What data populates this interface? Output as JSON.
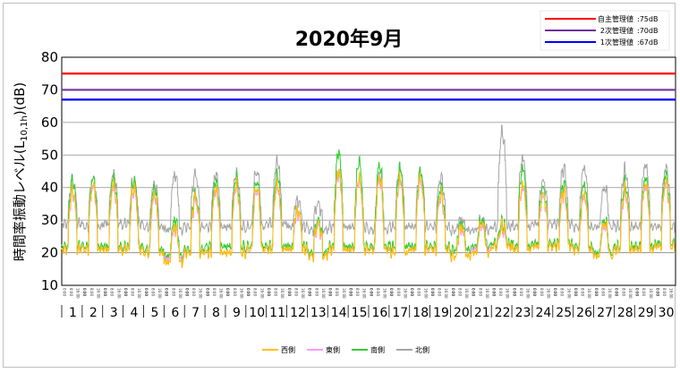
{
  "chart_data": {
    "type": "line",
    "title": "2020年9月",
    "ylabel_prefix": "時間率振動レベル(L",
    "ylabel_sub": "10,1h",
    "ylabel_suffix": ")(dB)",
    "ylim": [
      10,
      80
    ],
    "yticks": [
      10,
      20,
      30,
      40,
      50,
      60,
      70,
      80
    ],
    "x_days": [
      "1",
      "2",
      "3",
      "4",
      "5",
      "6",
      "7",
      "8",
      "9",
      "10",
      "11",
      "12",
      "13",
      "14",
      "15",
      "16",
      "17",
      "18",
      "19",
      "20",
      "21",
      "22",
      "23",
      "24",
      "25",
      "26",
      "27",
      "28",
      "29",
      "30"
    ],
    "hour_ticks": [
      "0:00",
      "8:00",
      "16:00",
      "0:00"
    ],
    "thresholds": [
      {
        "name": "自主管理値",
        "value_label": ":75dB",
        "value": 75,
        "color": "#ff0000"
      },
      {
        "name": "2次管理値",
        "value_label": ":70dB",
        "value": 70,
        "color": "#7030a0"
      },
      {
        "name": "1次管理値",
        "value_label": ":67dB",
        "value": 67,
        "color": "#0000ff"
      }
    ],
    "series": [
      {
        "name": "西側",
        "color": "#ffc000"
      },
      {
        "name": "東側",
        "color": "#ff99ff"
      },
      {
        "name": "南側",
        "color": "#33cc33"
      },
      {
        "name": "北側",
        "color": "#a6a6a6"
      }
    ],
    "daily": {
      "north_base": [
        29,
        28,
        29,
        29,
        28,
        27,
        28,
        28,
        28,
        28,
        29,
        28,
        27,
        28,
        28,
        27,
        28,
        28,
        28,
        27,
        27,
        28,
        28,
        29,
        29,
        28,
        28,
        28,
        28,
        28
      ],
      "north_peak": [
        42,
        43,
        44,
        42,
        41,
        44,
        44,
        44,
        44,
        45,
        48,
        36,
        35,
        45,
        42,
        44,
        46,
        45,
        43,
        30,
        30,
        57,
        49,
        42,
        46,
        46,
        40,
        45,
        47,
        46
      ],
      "south_base": [
        22,
        22,
        22,
        22,
        21,
        19,
        21,
        22,
        22,
        22,
        22,
        22,
        20,
        22,
        22,
        22,
        22,
        22,
        22,
        21,
        22,
        23,
        22,
        23,
        23,
        22,
        20,
        22,
        22,
        23
      ],
      "south_peak": [
        42,
        43,
        43,
        42,
        40,
        30,
        38,
        42,
        43,
        42,
        44,
        33,
        30,
        51,
        48,
        47,
        46,
        45,
        40,
        29,
        30,
        29,
        46,
        40,
        41,
        41,
        30,
        41,
        43,
        44
      ],
      "east_base": [
        21,
        21,
        21,
        21,
        20,
        18,
        20,
        20,
        20,
        21,
        21,
        21,
        19,
        21,
        21,
        21,
        20,
        21,
        21,
        19,
        21,
        22,
        21,
        22,
        22,
        21,
        19,
        21,
        21,
        22
      ],
      "east_peak": [
        38,
        40,
        40,
        39,
        37,
        27,
        36,
        39,
        40,
        39,
        40,
        32,
        28,
        44,
        42,
        42,
        42,
        42,
        37,
        27,
        28,
        27,
        40,
        37,
        38,
        37,
        28,
        38,
        40,
        41
      ],
      "west_base": [
        21,
        21,
        21,
        21,
        20,
        17,
        20,
        20,
        20,
        21,
        21,
        21,
        19,
        21,
        21,
        21,
        20,
        21,
        21,
        19,
        20,
        22,
        21,
        22,
        22,
        21,
        19,
        21,
        21,
        22
      ],
      "west_peak": [
        39,
        41,
        41,
        40,
        38,
        28,
        37,
        40,
        41,
        40,
        41,
        33,
        29,
        45,
        43,
        43,
        43,
        43,
        38,
        28,
        29,
        28,
        41,
        38,
        39,
        38,
        29,
        39,
        41,
        42
      ]
    }
  }
}
